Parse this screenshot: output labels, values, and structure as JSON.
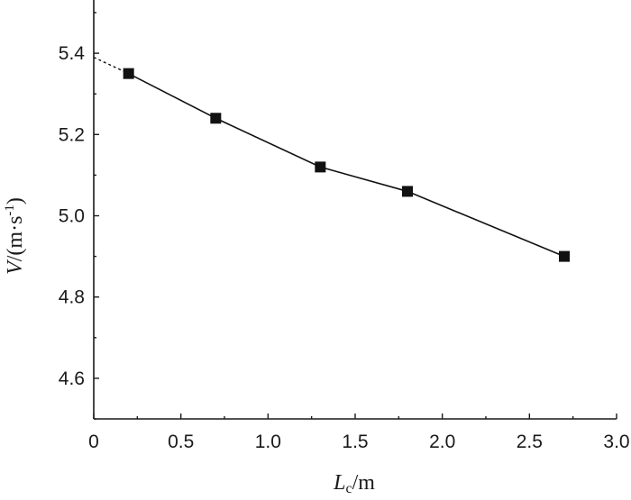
{
  "chart_data": {
    "type": "line",
    "title": "",
    "xlabel_main": "L",
    "xlabel_sub": "c",
    "xlabel_rest": "/m",
    "ylabel_main": "V",
    "ylabel_rest": "/(m·s",
    "ylabel_sup": "-1",
    "ylabel_close": ")",
    "xlim": [
      0,
      3.0
    ],
    "ylim": [
      4.5,
      5.5
    ],
    "xticks": [
      "0",
      "0.5",
      "1.0",
      "1.5",
      "2.0",
      "2.5",
      "3.0"
    ],
    "xtick_values": [
      0,
      0.5,
      1.0,
      1.5,
      2.0,
      2.5,
      3.0
    ],
    "yticks": [
      "4.6",
      "4.8",
      "5.0",
      "5.2",
      "5.4"
    ],
    "ytick_values": [
      4.6,
      4.8,
      5.0,
      5.2,
      5.4
    ],
    "series": [
      {
        "x": [
          0.2,
          0.7,
          1.3,
          1.8,
          2.7
        ],
        "y": [
          5.35,
          5.24,
          5.12,
          5.06,
          4.9
        ],
        "marker": "square",
        "color": "#111111"
      }
    ],
    "extrapolation": {
      "x": [
        0,
        0.2
      ],
      "y": [
        5.39,
        5.35
      ],
      "style": "dashed"
    },
    "grid": false,
    "legend": "none"
  }
}
